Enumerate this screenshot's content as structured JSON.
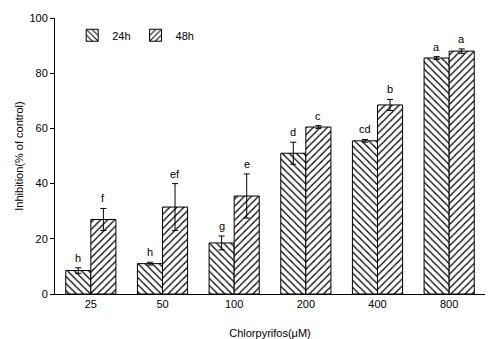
{
  "chart_data": {
    "type": "bar",
    "x_label": "Chlorpyrifos(μM)",
    "y_label": "Inhibition(% of control)",
    "categories": [
      "25",
      "50",
      "100",
      "200",
      "400",
      "800"
    ],
    "series": [
      {
        "name": "24h",
        "color": "#000000",
        "values": [
          8.5,
          11,
          18.5,
          51,
          55.5,
          85.5
        ],
        "error": [
          1,
          0.5,
          2.5,
          4,
          0.5,
          0.5
        ],
        "letters": [
          "h",
          "h",
          "g",
          "d",
          "cd",
          "a"
        ]
      },
      {
        "name": "48h",
        "color": "#000000",
        "values": [
          27,
          31.5,
          35.5,
          60.5,
          68.5,
          88
        ],
        "error": [
          4,
          8.5,
          8,
          0.5,
          2,
          0.8
        ],
        "letters": [
          "f",
          "ef",
          "e",
          "c",
          "b",
          "a"
        ]
      }
    ],
    "ylim": [
      0,
      100
    ],
    "yticks": [
      0,
      20,
      40,
      60,
      80,
      100
    ],
    "grid": false,
    "legend": "upper left"
  }
}
